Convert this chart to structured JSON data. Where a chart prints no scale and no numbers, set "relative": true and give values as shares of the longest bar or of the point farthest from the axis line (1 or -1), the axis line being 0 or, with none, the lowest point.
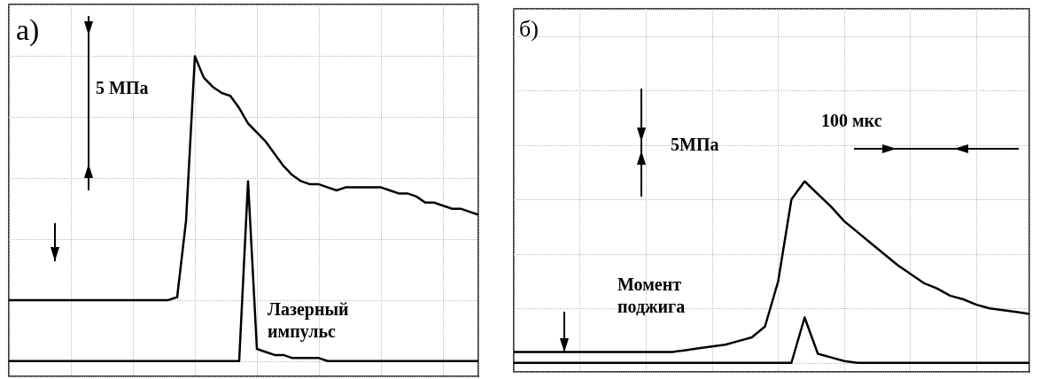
{
  "chart_data": [
    {
      "type": "line",
      "relative": true,
      "grid": true,
      "marker": "none",
      "line_style": "solid",
      "annotations": [
        "а)",
        "5 МПа",
        "Лазерный импульс"
      ],
      "categories": [
        null,
        null,
        null,
        null,
        null,
        null,
        null,
        null,
        null,
        null,
        null,
        null,
        null,
        null,
        null,
        null,
        null,
        null,
        null,
        null,
        null,
        null,
        null,
        null,
        null,
        null,
        null,
        null,
        null,
        null,
        null,
        null,
        null,
        null,
        null,
        null,
        null,
        null,
        null,
        null,
        null,
        null,
        null,
        null,
        null,
        null,
        null,
        null,
        null,
        null,
        null,
        null,
        null,
        null
      ],
      "series": [
        {
          "color": "#000000",
          "values": [
            0.2,
            0.2,
            0.2,
            0.2,
            0.2,
            0.2,
            0.2,
            0.2,
            0.2,
            0.2,
            0.2,
            0.2,
            0.2,
            0.2,
            0.2,
            0.2,
            0.2,
            0.2,
            0.2,
            0.21,
            0.46,
            1,
            0.93,
            0.9,
            0.88,
            0.87,
            0.83,
            0.78,
            0.75,
            0.72,
            0.68,
            0.64,
            0.61,
            0.59,
            0.58,
            0.58,
            0.57,
            0.56,
            0.57,
            0.57,
            0.57,
            0.57,
            0.57,
            0.56,
            0.55,
            0.55,
            0.54,
            0.52,
            0.52,
            0.51,
            0.5,
            0.5,
            0.49,
            0.48
          ]
        },
        {
          "color": "#000000",
          "values": [
            0,
            0,
            0,
            0,
            0,
            0,
            0,
            0,
            0,
            0,
            0,
            0,
            0,
            0,
            0,
            0,
            0,
            0,
            0,
            0,
            0,
            0,
            0,
            0,
            0,
            0,
            0,
            0.59,
            0.04,
            0.03,
            0.02,
            0.02,
            0.01,
            0.01,
            0.01,
            0.01,
            0,
            0,
            0,
            0,
            0,
            0,
            0,
            0,
            0,
            0,
            0,
            0,
            0,
            0,
            0,
            0,
            0,
            0
          ]
        }
      ]
    },
    {
      "type": "line",
      "relative": true,
      "grid": true,
      "marker": "none",
      "line_style": "solid",
      "annotations": [
        "б)",
        "5МПа",
        "100 мкс",
        "Момент поджига"
      ],
      "categories": [
        null,
        null,
        null,
        null,
        null,
        null,
        null,
        null,
        null,
        null,
        null,
        null,
        null,
        null,
        null,
        null,
        null,
        null,
        null,
        null,
        null,
        null,
        null,
        null,
        null,
        null,
        null,
        null,
        null,
        null,
        null,
        null,
        null,
        null,
        null,
        null,
        null,
        null,
        null,
        null
      ],
      "series": [
        {
          "color": "#000000",
          "values": [
            0.06,
            0.06,
            0.06,
            0.06,
            0.06,
            0.06,
            0.06,
            0.06,
            0.06,
            0.06,
            0.06,
            0.06,
            0.06,
            0.07,
            0.08,
            0.09,
            0.1,
            0.12,
            0.14,
            0.2,
            0.45,
            0.9,
            1,
            0.93,
            0.86,
            0.78,
            0.72,
            0.66,
            0.6,
            0.54,
            0.49,
            0.44,
            0.41,
            0.37,
            0.35,
            0.32,
            0.3,
            0.29,
            0.28,
            0.27
          ]
        },
        {
          "color": "#000000",
          "values": [
            0,
            0,
            0,
            0,
            0,
            0,
            0,
            0,
            0,
            0,
            0,
            0,
            0,
            0,
            0,
            0,
            0,
            0,
            0,
            0,
            0,
            0,
            0.25,
            0.05,
            0.03,
            0.01,
            0,
            0,
            0,
            0,
            0,
            0,
            0,
            0,
            0,
            0,
            0,
            0,
            0,
            0
          ]
        }
      ]
    }
  ]
}
